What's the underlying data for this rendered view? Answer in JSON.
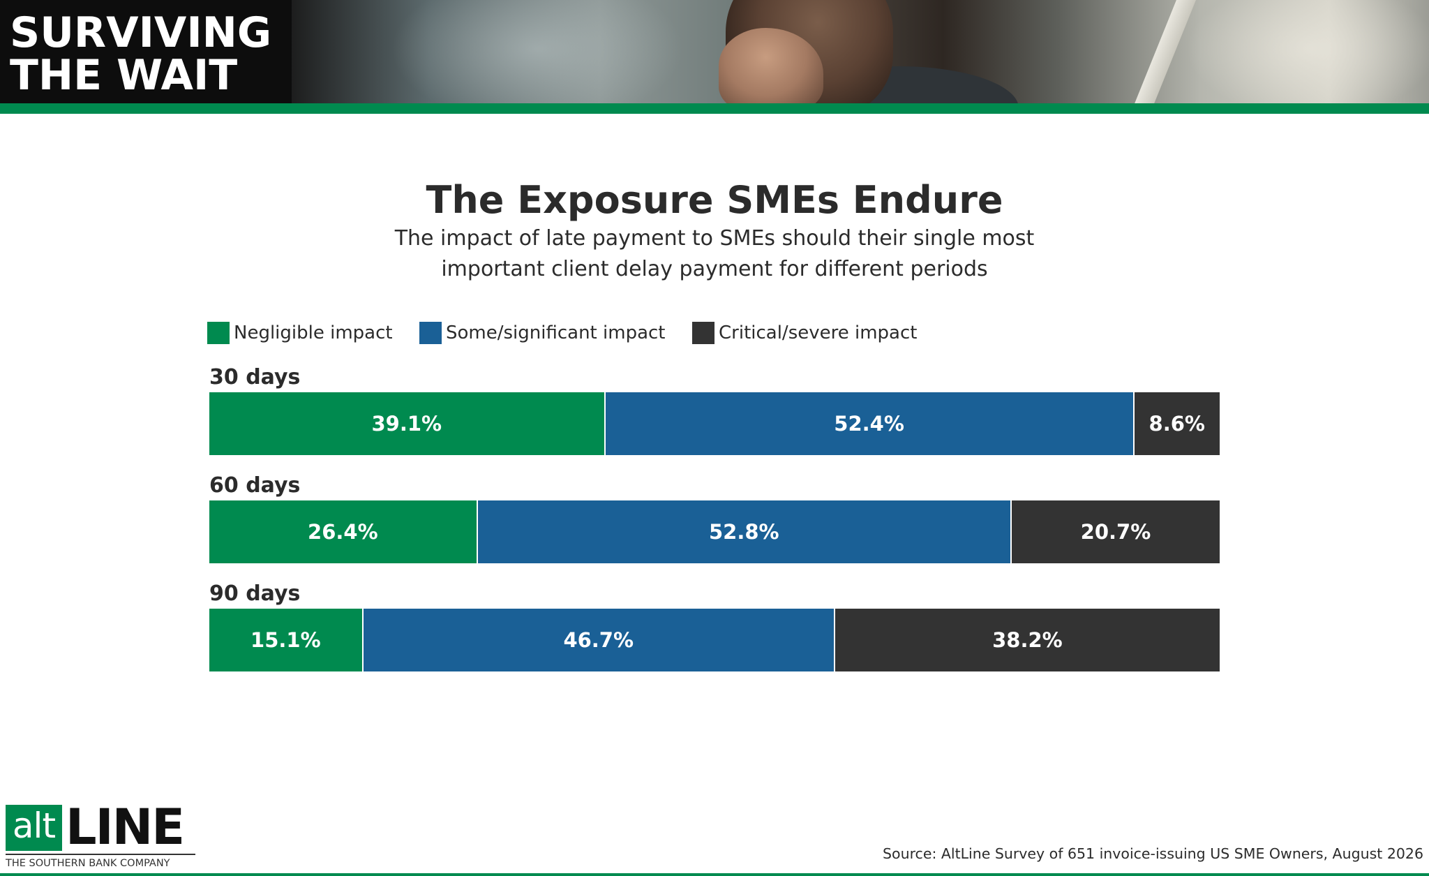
{
  "header": {
    "title_line1": "SURVIVING",
    "title_line2": "THE WAIT",
    "accent_color": "#008a4f"
  },
  "chart_data": {
    "type": "bar",
    "orientation": "horizontal",
    "stacked": true,
    "percent_stacked": true,
    "title": "The Exposure SMEs Endure",
    "subtitle_line1": "The impact of late payment to SMEs should their single most",
    "subtitle_line2": "important client delay payment for different periods",
    "categories": [
      "30 days",
      "60 days",
      "90 days"
    ],
    "series": [
      {
        "name": "Negligible impact",
        "color": "#008a4f",
        "values": [
          39.1,
          26.4,
          15.1
        ]
      },
      {
        "name": "Some/significant impact",
        "color": "#1a6096",
        "values": [
          52.4,
          52.8,
          46.7
        ]
      },
      {
        "name": "Critical/severe impact",
        "color": "#333333",
        "values": [
          8.6,
          20.7,
          38.2
        ]
      }
    ],
    "value_suffix": "%",
    "legend_position": "top-left",
    "grid": false
  },
  "footer": {
    "logo_alt": "alt",
    "logo_line": "LINE",
    "logo_tagline": "THE SOUTHERN BANK COMPANY",
    "source": "Source:  AltLine Survey of 651 invoice-issuing US SME Owners, August 2026"
  }
}
